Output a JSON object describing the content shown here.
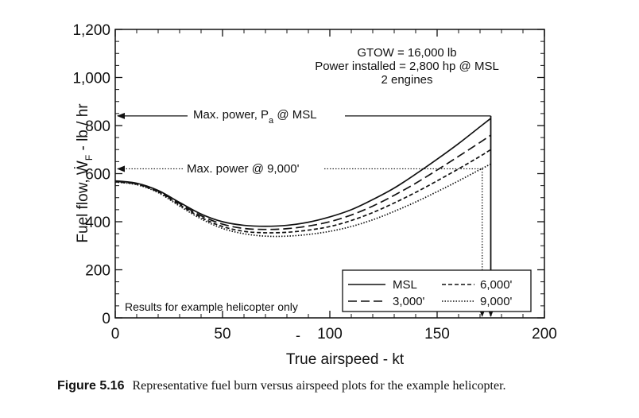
{
  "chart_data": {
    "type": "line",
    "xlabel": "True airspeed - kt",
    "ylabel": "Fuel flow, Ẇ",
    "ylabel_sub": "F",
    "ylabel_tail": " - lb / hr",
    "xlim": [
      0,
      200
    ],
    "ylim": [
      0,
      1200
    ],
    "xticks": [
      "0",
      "50",
      "100",
      "150",
      "200"
    ],
    "xtick_values": [
      0,
      50,
      100,
      150,
      200
    ],
    "yticks": [
      "0",
      "200",
      "400",
      "600",
      "800",
      "1,000",
      "1,200"
    ],
    "ytick_values": [
      0,
      200,
      400,
      600,
      800,
      1000,
      1200
    ],
    "stray_tick_mark": "-",
    "grid": false,
    "legend_position": "lower-right",
    "x": [
      0,
      10,
      20,
      30,
      40,
      50,
      60,
      70,
      80,
      90,
      100,
      110,
      120,
      130,
      140,
      150,
      160,
      170,
      175
    ],
    "series": [
      {
        "name": "MSL",
        "style": "solid",
        "values": [
          570,
          560,
          530,
          480,
          432,
          400,
          385,
          381,
          385,
          398,
          420,
          450,
          492,
          540,
          598,
          660,
          725,
          795,
          830
        ]
      },
      {
        "name": "3,000'",
        "style": "dashed",
        "values": [
          568,
          558,
          527,
          475,
          425,
          390,
          372,
          368,
          371,
          382,
          400,
          428,
          465,
          510,
          560,
          615,
          672,
          730,
          760
        ]
      },
      {
        "name": "6,000'",
        "style": "shortdash",
        "values": [
          566,
          556,
          524,
          470,
          418,
          380,
          360,
          354,
          356,
          365,
          380,
          405,
          438,
          478,
          522,
          570,
          620,
          672,
          700
        ]
      },
      {
        "name": "9,000'",
        "style": "dotted",
        "values": [
          565,
          554,
          521,
          465,
          412,
          372,
          350,
          340,
          340,
          347,
          360,
          380,
          408,
          443,
          482,
          525,
          570,
          617,
          640
        ]
      }
    ],
    "legend_rows": [
      [
        "MSL",
        "6,000'"
      ],
      [
        "3,000'",
        "9,000'"
      ]
    ],
    "annotations": {
      "gtow": "GTOW = 16,000 lb",
      "power_installed": "Power installed = 2,800 hp @ MSL",
      "engines": "2 engines",
      "max_power_msl_text": "Max. power, P",
      "max_power_msl_sub": "a",
      "max_power_msl_tail": " @ MSL",
      "max_power_msl_value": 840,
      "max_power_msl_speed": 175,
      "max_power_9000": "Max. power @ 9,000'",
      "max_power_9000_value": 620,
      "max_power_9000_speed": 171,
      "note": "Results for example helicopter only"
    }
  },
  "caption": {
    "label": "Figure 5.16",
    "text": "Representative fuel burn versus airspeed plots for the example helicopter."
  }
}
